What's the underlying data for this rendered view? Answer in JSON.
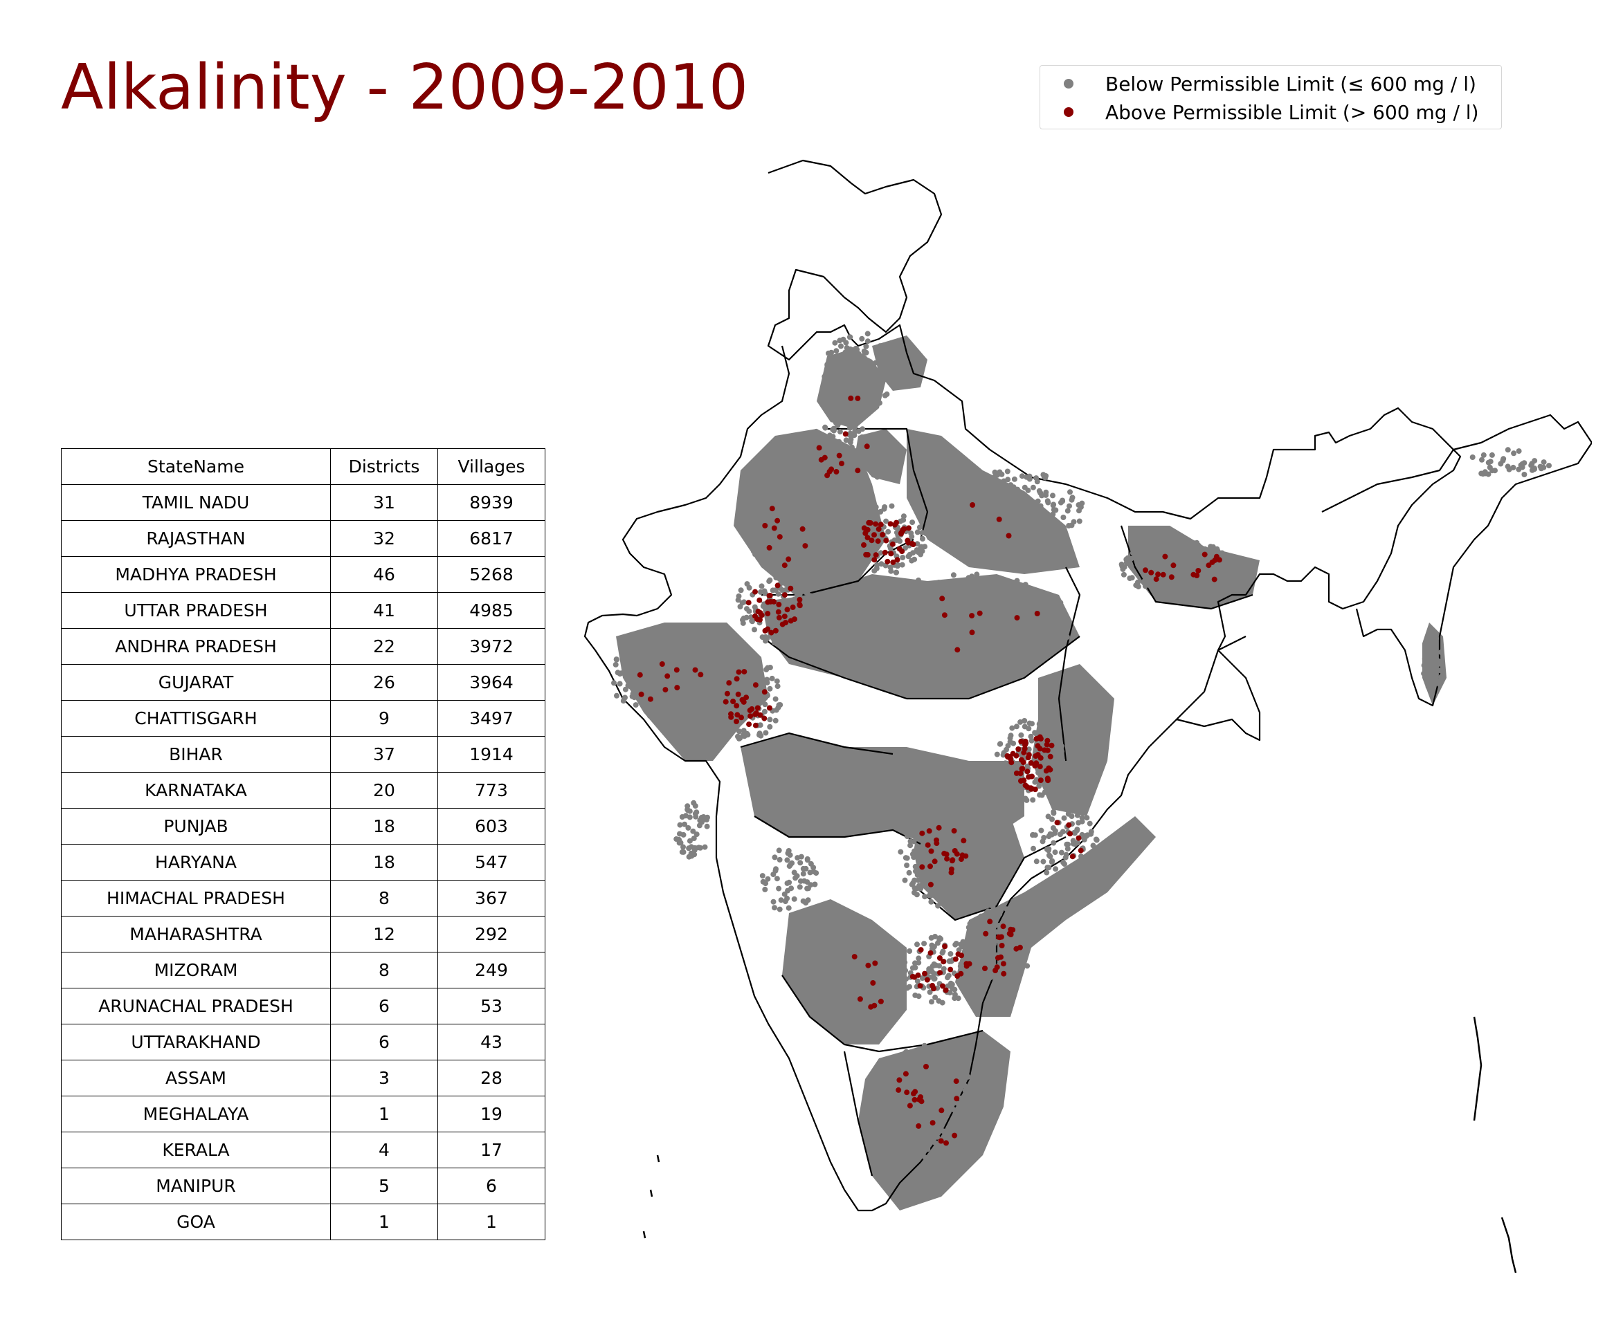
{
  "title": "Alkalinity - 2009-2010",
  "legend": {
    "items": [
      {
        "label": "Below Permissible Limit (≤ 600 mg / l)",
        "color": "#808080"
      },
      {
        "label": "Above Permissible Limit (> 600 mg / l)",
        "color": "#8b0000"
      }
    ]
  },
  "table": {
    "headers": [
      "StateName",
      "Districts",
      "Villages"
    ],
    "rows": [
      [
        "TAMIL NADU",
        "31",
        "8939"
      ],
      [
        "RAJASTHAN",
        "32",
        "6817"
      ],
      [
        "MADHYA PRADESH",
        "46",
        "5268"
      ],
      [
        "UTTAR PRADESH",
        "41",
        "4985"
      ],
      [
        "ANDHRA PRADESH",
        "22",
        "3972"
      ],
      [
        "GUJARAT",
        "26",
        "3964"
      ],
      [
        "CHATTISGARH",
        "9",
        "3497"
      ],
      [
        "BIHAR",
        "37",
        "1914"
      ],
      [
        "KARNATAKA",
        "20",
        "773"
      ],
      [
        "PUNJAB",
        "18",
        "603"
      ],
      [
        "HARYANA",
        "18",
        "547"
      ],
      [
        "HIMACHAL PRADESH",
        "8",
        "367"
      ],
      [
        "MAHARASHTRA",
        "12",
        "292"
      ],
      [
        "MIZORAM",
        "8",
        "249"
      ],
      [
        "ARUNACHAL PRADESH",
        "6",
        "53"
      ],
      [
        "UTTARAKHAND",
        "6",
        "43"
      ],
      [
        "ASSAM",
        "3",
        "28"
      ],
      [
        "MEGHALAYA",
        "1",
        "19"
      ],
      [
        "KERALA",
        "4",
        "17"
      ],
      [
        "MANIPUR",
        "5",
        "6"
      ],
      [
        "GOA",
        "1",
        "1"
      ]
    ]
  },
  "colors": {
    "title": "#800000",
    "below_limit": "#808080",
    "above_limit": "#8b0000",
    "boundary": "#000000"
  }
}
